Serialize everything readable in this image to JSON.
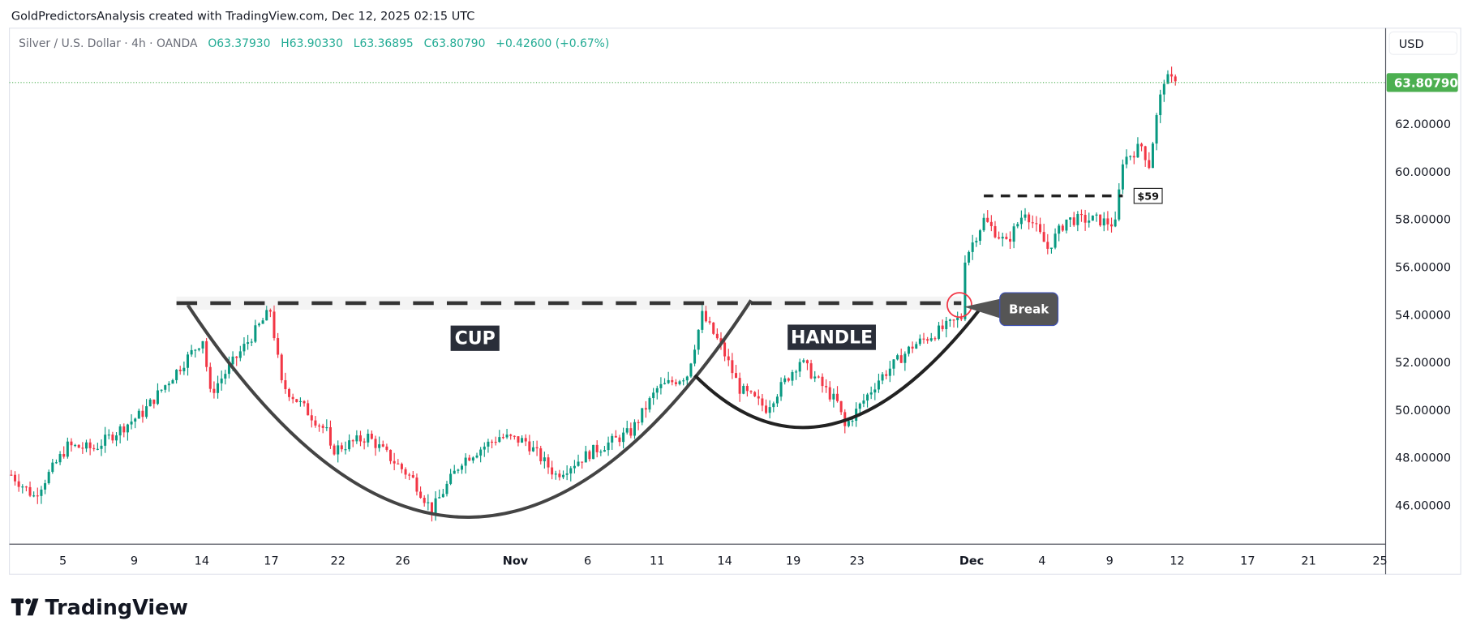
{
  "header": {
    "attribution": "GoldPredictorsAnalysis created with TradingView.com, Dec 12, 2025 02:15 UTC"
  },
  "legend": {
    "symbol": "Silver / U.S. Dollar · 4h · OANDA",
    "open": "O63.37930",
    "high": "H63.90330",
    "low": "L63.36895",
    "close": "C63.80790",
    "change": "+0.42600 (+0.67%)"
  },
  "price_axis": {
    "currency": "USD",
    "last_price": "63.80790"
  },
  "logo": {
    "text": "TradingView"
  },
  "colors": {
    "up": "#089981",
    "down": "#f23645",
    "last_price": "#4caf50",
    "pattern": "#444444"
  },
  "chart_data": {
    "type": "candlestick",
    "title": "Silver / U.S. Dollar · 4h · OANDA",
    "x_unit": "4h bar index",
    "ylim": [
      44.6,
      65.2
    ],
    "y_ticks": [
      {
        "value": 62,
        "label": "62.00000"
      },
      {
        "value": 60,
        "label": "60.00000"
      },
      {
        "value": 58,
        "label": "58.00000"
      },
      {
        "value": 56,
        "label": "56.00000"
      },
      {
        "value": 54,
        "label": "54.00000"
      },
      {
        "value": 52,
        "label": "52.00000"
      },
      {
        "value": 50,
        "label": "50.00000"
      },
      {
        "value": 48,
        "label": "48.00000"
      },
      {
        "value": 46,
        "label": "46.00000"
      }
    ],
    "x_ticks": [
      {
        "bar": 13.75,
        "label": "5"
      },
      {
        "bar": 32.75,
        "label": "9"
      },
      {
        "bar": 50.75,
        "label": "14"
      },
      {
        "bar": 69.25,
        "label": "17"
      },
      {
        "bar": 87,
        "label": "22"
      },
      {
        "bar": 104.25,
        "label": "26"
      },
      {
        "bar": 134.25,
        "label": "Nov",
        "bold": true
      },
      {
        "bar": 153.5,
        "label": "6"
      },
      {
        "bar": 172,
        "label": "11"
      },
      {
        "bar": 190,
        "label": "14"
      },
      {
        "bar": 208.25,
        "label": "19"
      },
      {
        "bar": 225.25,
        "label": "23"
      },
      {
        "bar": 255.75,
        "label": "Dec",
        "bold": true
      },
      {
        "bar": 274.5,
        "label": "4"
      },
      {
        "bar": 292.5,
        "label": "9"
      },
      {
        "bar": 310.5,
        "label": "12"
      },
      {
        "bar": 329.25,
        "label": "17"
      },
      {
        "bar": 345.5,
        "label": "21"
      },
      {
        "bar": 364.5,
        "label": "25"
      }
    ],
    "close_path": [
      [
        0,
        47.3
      ],
      [
        6,
        46.4
      ],
      [
        15,
        48.5
      ],
      [
        22,
        48.4
      ],
      [
        35,
        49.9
      ],
      [
        51,
        53.0
      ],
      [
        53,
        50.7
      ],
      [
        69,
        54.2
      ],
      [
        72,
        51.1
      ],
      [
        84,
        49.1
      ],
      [
        85,
        48.3
      ],
      [
        95,
        48.9
      ],
      [
        107,
        47.1
      ],
      [
        112,
        45.8
      ],
      [
        120,
        47.9
      ],
      [
        130,
        48.9
      ],
      [
        137,
        48.7
      ],
      [
        145,
        47.3
      ],
      [
        155,
        48.3
      ],
      [
        165,
        49.1
      ],
      [
        172,
        50.9
      ],
      [
        180,
        51.5
      ],
      [
        184,
        54.0
      ],
      [
        189,
        52.7
      ],
      [
        194,
        50.9
      ],
      [
        201,
        50.1
      ],
      [
        210,
        52.1
      ],
      [
        220,
        50.3
      ],
      [
        222,
        49.3
      ],
      [
        231,
        51.3
      ],
      [
        240,
        52.7
      ],
      [
        250,
        53.6
      ],
      [
        253,
        53.9
      ],
      [
        254,
        56.4
      ],
      [
        259,
        58.0
      ],
      [
        265,
        57.0
      ],
      [
        270,
        58.4
      ],
      [
        276,
        56.8
      ],
      [
        281,
        58.0
      ],
      [
        289,
        58.0
      ],
      [
        294,
        57.8
      ],
      [
        296,
        60.5
      ],
      [
        301,
        61.1
      ],
      [
        303,
        60.3
      ],
      [
        305,
        62.3
      ],
      [
        307,
        63.9
      ],
      [
        310,
        63.8
      ]
    ],
    "annotations": {
      "neckline": {
        "price": 54.5,
        "from_bar": 45,
        "to_bar": 253
      },
      "resistance_59": {
        "price": 59.0,
        "from_bar": 259,
        "to_bar": 296,
        "label": "$59"
      },
      "cup_label": "CUP",
      "handle_label": "HANDLE",
      "break_label": "Break"
    }
  }
}
